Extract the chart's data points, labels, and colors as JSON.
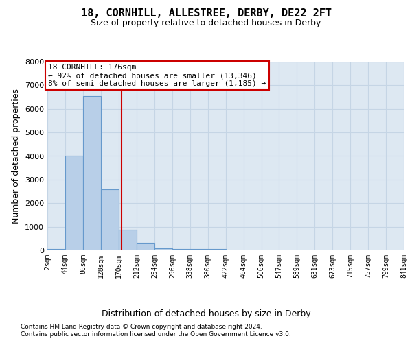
{
  "title_line1": "18, CORNHILL, ALLESTREE, DERBY, DE22 2FT",
  "title_line2": "Size of property relative to detached houses in Derby",
  "xlabel": "Distribution of detached houses by size in Derby",
  "ylabel": "Number of detached properties",
  "footnote1": "Contains HM Land Registry data © Crown copyright and database right 2024.",
  "footnote2": "Contains public sector information licensed under the Open Government Licence v3.0.",
  "annotation_title": "18 CORNHILL: 176sqm",
  "annotation_line1": "← 92% of detached houses are smaller (13,346)",
  "annotation_line2": "8% of semi-detached houses are larger (1,185) →",
  "property_size": 176,
  "bin_edges": [
    2,
    44,
    86,
    128,
    170,
    212,
    254,
    296,
    338,
    380,
    422,
    464,
    506,
    547,
    589,
    631,
    673,
    715,
    757,
    799,
    841
  ],
  "bar_heights": [
    50,
    4000,
    6550,
    2600,
    870,
    310,
    100,
    65,
    50,
    50,
    0,
    0,
    0,
    0,
    0,
    0,
    0,
    0,
    0,
    0
  ],
  "bar_color": "#b8cfe8",
  "bar_edge_color": "#6699cc",
  "vline_color": "#cc0000",
  "annotation_box_edgecolor": "#cc0000",
  "ylim": [
    0,
    8000
  ],
  "yticks": [
    0,
    1000,
    2000,
    3000,
    4000,
    5000,
    6000,
    7000,
    8000
  ],
  "xtick_labels": [
    "2sqm",
    "44sqm",
    "86sqm",
    "128sqm",
    "170sqm",
    "212sqm",
    "254sqm",
    "296sqm",
    "338sqm",
    "380sqm",
    "422sqm",
    "464sqm",
    "506sqm",
    "547sqm",
    "589sqm",
    "631sqm",
    "673sqm",
    "715sqm",
    "757sqm",
    "799sqm",
    "841sqm"
  ],
  "grid_color": "#c5d5e5",
  "bg_color": "#dde8f2"
}
